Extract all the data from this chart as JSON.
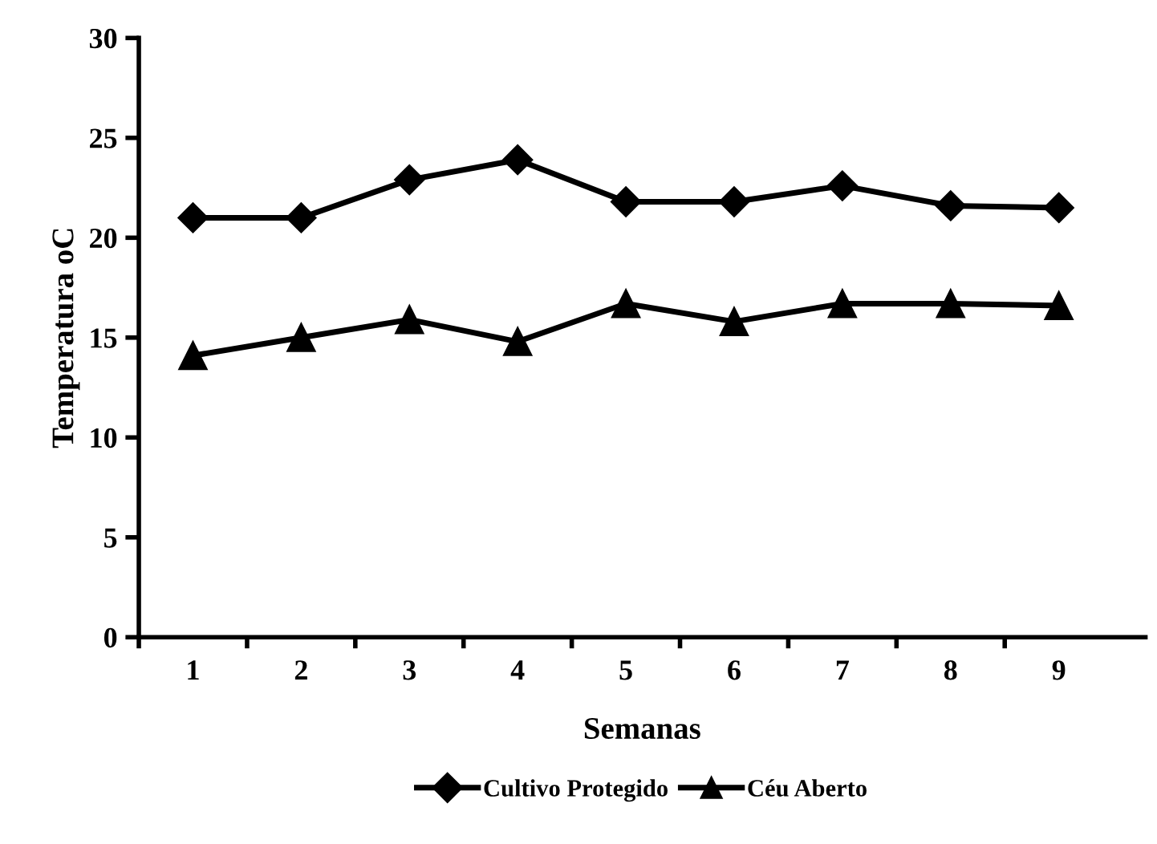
{
  "chart_data": {
    "type": "line",
    "xlabel": "Semanas",
    "ylabel": "Temperatura oC",
    "categories": [
      "1",
      "2",
      "3",
      "4",
      "5",
      "6",
      "7",
      "8",
      "9"
    ],
    "series": [
      {
        "name": "Cultivo Protegido",
        "color": "#000000",
        "marker": "diamond",
        "values": [
          21,
          21,
          22.9,
          23.9,
          21.8,
          21.8,
          22.6,
          21.6,
          21.5
        ]
      },
      {
        "name": "Céu Aberto",
        "color": "#000000",
        "marker": "triangle",
        "values": [
          14.1,
          15,
          15.9,
          14.8,
          16.7,
          15.8,
          16.7,
          16.7,
          16.6
        ]
      }
    ],
    "ylim": [
      0,
      30
    ],
    "yticks": [
      0,
      5,
      10,
      15,
      20,
      25,
      30
    ],
    "grid": false,
    "legend": "bottom",
    "line_style": "solid"
  }
}
